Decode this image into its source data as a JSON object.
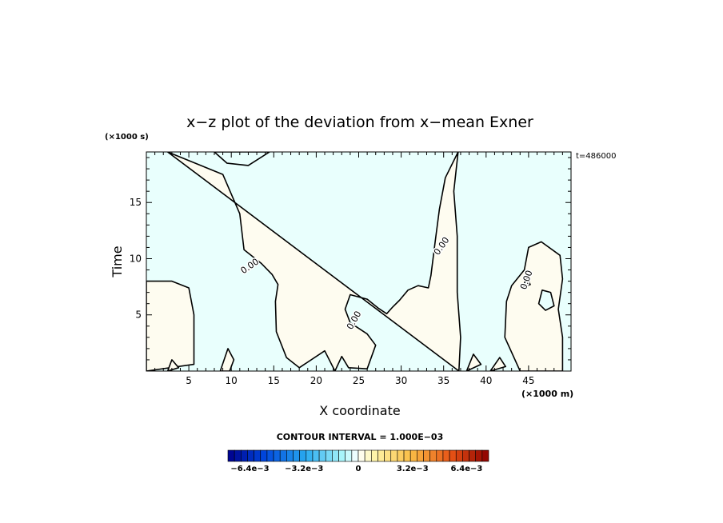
{
  "chart_data": {
    "type": "heatmap",
    "title": "x−z plot of the deviation from x−mean Exner",
    "xlabel": "X coordinate",
    "ylabel": "Time",
    "x_unit": "(×1000 m)",
    "y_unit": "(×1000 s)",
    "time_label": "t=486000",
    "xlim": [
      0,
      50
    ],
    "ylim": [
      0,
      19.5
    ],
    "x_ticks": [
      5,
      10,
      15,
      20,
      25,
      30,
      35,
      40,
      45
    ],
    "y_ticks": [
      5,
      10,
      15
    ],
    "contour_label": "0.00",
    "contour_interval_label": "CONTOUR INTERVAL = 1.000E−03",
    "colorbar": {
      "min": -0.0077,
      "max": 0.0077,
      "n": 40,
      "tick_labels": [
        "−6.4e−3",
        "−3.2e−3",
        "0",
        "3.2e−3",
        "6.4e−3"
      ],
      "tick_values": [
        -0.0064,
        -0.0032,
        0,
        0.0032,
        0.0064
      ]
    },
    "colors": {
      "negative_fill": "#e9fffd",
      "positive_fill": "#fefcf0",
      "contour": "#000000"
    },
    "positive_regions": [
      [
        [
          2.5,
          19.5
        ],
        [
          9,
          17.5
        ],
        [
          11,
          14
        ],
        [
          11.5,
          10.8
        ],
        [
          13.5,
          9.6
        ],
        [
          14.8,
          8.6
        ],
        [
          15.5,
          7.7
        ],
        [
          15.2,
          6.2
        ],
        [
          15.3,
          3.5
        ],
        [
          16.5,
          1.2
        ],
        [
          18,
          0.3
        ],
        [
          21,
          1.8
        ],
        [
          22.2,
          0
        ],
        [
          23,
          1.3
        ],
        [
          23.8,
          0.3
        ],
        [
          26,
          0.2
        ],
        [
          27,
          2.3
        ],
        [
          26,
          3.3
        ],
        [
          24,
          4.3
        ],
        [
          23.4,
          5.5
        ],
        [
          24,
          6.8
        ],
        [
          26,
          6.4
        ],
        [
          27.3,
          5.6
        ],
        [
          28.3,
          5.1
        ],
        [
          29,
          5.7
        ],
        [
          29.8,
          6.3
        ],
        [
          30.8,
          7.2
        ],
        [
          32,
          7.6
        ],
        [
          33.2,
          7.4
        ],
        [
          33.5,
          8.5
        ],
        [
          34,
          11.5
        ],
        [
          34.5,
          14.4
        ],
        [
          35.2,
          17.2
        ],
        [
          36.7,
          19.5
        ],
        [
          36.2,
          16
        ],
        [
          36.6,
          12
        ],
        [
          36.6,
          7
        ],
        [
          37,
          3
        ],
        [
          36.8,
          0
        ]
      ],
      [
        [
          0,
          8
        ],
        [
          3,
          8
        ],
        [
          5,
          7.4
        ],
        [
          5.6,
          5
        ],
        [
          5.6,
          0.6
        ],
        [
          0,
          0
        ]
      ],
      [
        [
          44.5,
          9
        ],
        [
          45,
          11
        ],
        [
          46.5,
          11.5
        ],
        [
          48.7,
          10.3
        ],
        [
          49,
          8.2
        ],
        [
          48.5,
          5.5
        ],
        [
          49,
          3
        ],
        [
          49,
          0
        ],
        [
          44,
          0
        ],
        [
          42.2,
          3
        ],
        [
          42.4,
          6.2
        ],
        [
          43,
          7.6
        ]
      ],
      [
        [
          9.6,
          2
        ],
        [
          10.3,
          1
        ],
        [
          9.8,
          0
        ],
        [
          8.7,
          0
        ]
      ],
      [
        [
          2.5,
          0
        ],
        [
          3,
          1
        ],
        [
          3.8,
          0.3
        ]
      ],
      [
        [
          37.7,
          0
        ],
        [
          38.5,
          1.5
        ],
        [
          39.4,
          0.6
        ]
      ],
      [
        [
          40.5,
          0
        ],
        [
          41.6,
          1.2
        ],
        [
          42.3,
          0.4
        ]
      ]
    ],
    "negative_regions": [
      [
        [
          8,
          19.5
        ],
        [
          9.5,
          18.5
        ],
        [
          12,
          18.3
        ],
        [
          14.5,
          19.5
        ]
      ],
      [
        [
          46.2,
          6
        ],
        [
          47,
          5.4
        ],
        [
          48,
          5.8
        ],
        [
          47.6,
          7
        ],
        [
          46.6,
          7.2
        ]
      ],
      [
        [
          44.3,
          7.5
        ],
        [
          44.8,
          8.3
        ],
        [
          45.2,
          7.7
        ]
      ]
    ],
    "contour_label_positions": [
      [
        12.2,
        9.3,
        -35
      ],
      [
        24.5,
        4.5,
        -60
      ],
      [
        34.8,
        11.1,
        -55
      ],
      [
        44.8,
        8.1,
        -70
      ]
    ]
  }
}
